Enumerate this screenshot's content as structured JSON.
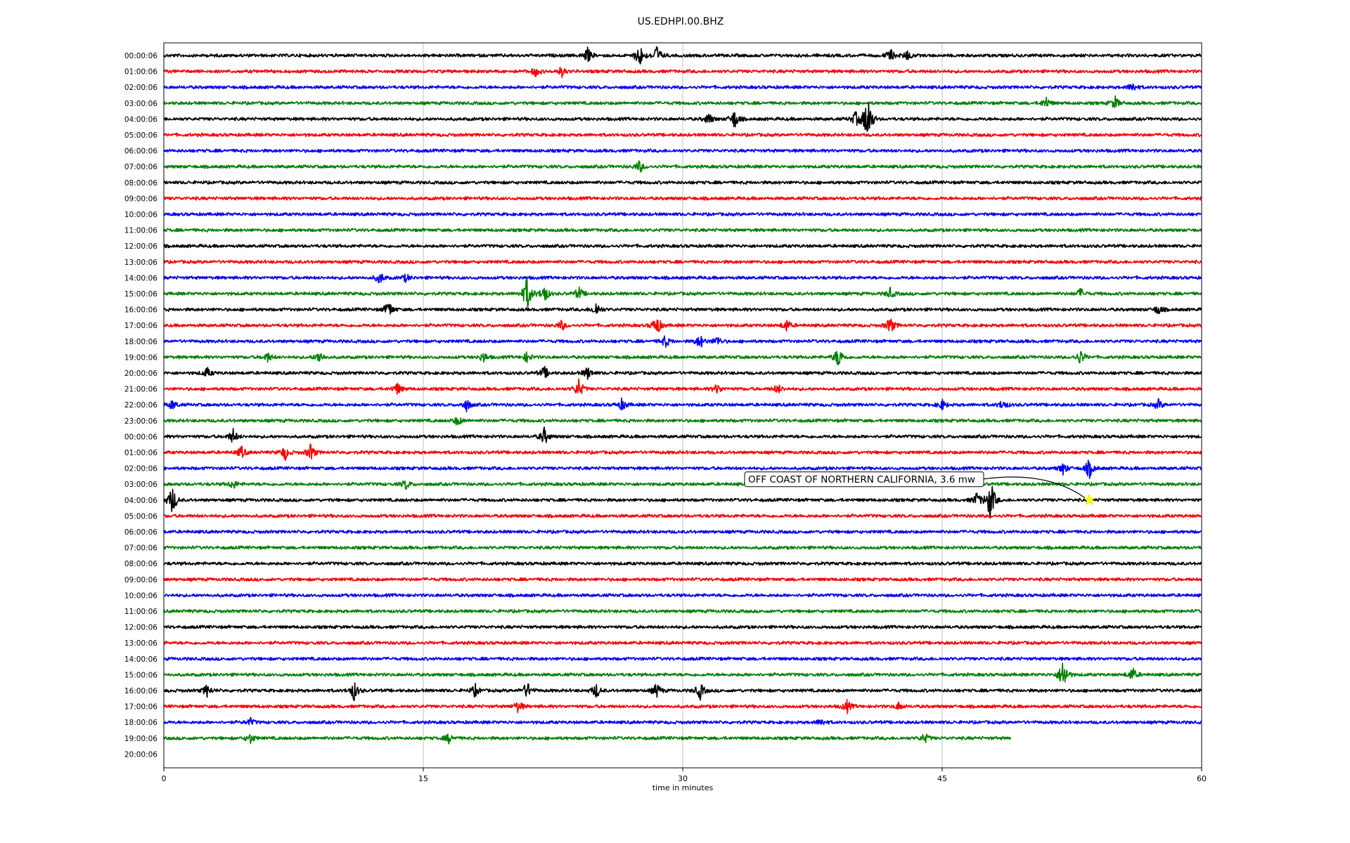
{
  "chart_data": {
    "type": "line",
    "title": "US.EDHPI.00.BHZ",
    "xlabel": "time in minutes",
    "ylabel": "",
    "xlim": [
      0,
      60
    ],
    "x_ticks": [
      "0",
      "15",
      "30",
      "45",
      "60"
    ],
    "x_tick_values": [
      0,
      15,
      30,
      45,
      60
    ],
    "grid": "vertical",
    "trace_end_minutes": 49,
    "colors": [
      "#000000",
      "#ff0000",
      "#0000ff",
      "#008000"
    ],
    "rows": [
      {
        "label": "00:00:06",
        "events": [
          [
            24.5,
            0.6
          ],
          [
            27.5,
            1.0
          ],
          [
            28.5,
            0.8
          ],
          [
            42.0,
            0.5
          ],
          [
            43.0,
            0.4
          ]
        ]
      },
      {
        "label": "01:00:06",
        "events": [
          [
            21.5,
            0.4
          ],
          [
            23.0,
            0.4
          ]
        ]
      },
      {
        "label": "02:00:06",
        "events": [
          [
            56.0,
            0.4
          ]
        ]
      },
      {
        "label": "03:00:06",
        "events": [
          [
            51.0,
            0.5
          ],
          [
            55.0,
            0.5
          ]
        ]
      },
      {
        "label": "04:00:06",
        "events": [
          [
            31.5,
            0.5
          ],
          [
            33.0,
            0.8
          ],
          [
            40.0,
            0.6
          ],
          [
            40.7,
            2.2
          ]
        ]
      },
      {
        "label": "05:00:06",
        "events": []
      },
      {
        "label": "06:00:06",
        "events": []
      },
      {
        "label": "07:00:06",
        "events": [
          [
            27.5,
            0.5
          ]
        ]
      },
      {
        "label": "08:00:06",
        "events": []
      },
      {
        "label": "09:00:06",
        "events": []
      },
      {
        "label": "10:00:06",
        "events": []
      },
      {
        "label": "11:00:06",
        "events": []
      },
      {
        "label": "12:00:06",
        "events": []
      },
      {
        "label": "13:00:06",
        "events": []
      },
      {
        "label": "14:00:06",
        "events": [
          [
            12.5,
            0.5
          ],
          [
            14.0,
            0.3
          ]
        ]
      },
      {
        "label": "15:00:06",
        "events": [
          [
            21.0,
            1.5
          ],
          [
            22.0,
            0.8
          ],
          [
            24.0,
            0.5
          ],
          [
            42.0,
            0.4
          ],
          [
            53.0,
            0.4
          ]
        ]
      },
      {
        "label": "16:00:06",
        "events": [
          [
            13.0,
            0.7
          ],
          [
            25.0,
            0.6
          ],
          [
            57.5,
            0.4
          ]
        ]
      },
      {
        "label": "17:00:06",
        "events": [
          [
            23.0,
            0.4
          ],
          [
            28.5,
            0.9
          ],
          [
            36.0,
            0.5
          ],
          [
            42.0,
            0.7
          ]
        ]
      },
      {
        "label": "18:00:06",
        "events": [
          [
            29.0,
            0.5
          ],
          [
            31.0,
            0.6
          ],
          [
            32.0,
            0.4
          ]
        ]
      },
      {
        "label": "19:00:06",
        "events": [
          [
            6.0,
            0.4
          ],
          [
            9.0,
            0.5
          ],
          [
            18.5,
            0.4
          ],
          [
            21.0,
            0.4
          ],
          [
            39.0,
            0.9
          ],
          [
            53.0,
            0.6
          ]
        ]
      },
      {
        "label": "20:00:06",
        "events": [
          [
            2.5,
            0.4
          ],
          [
            22.0,
            0.5
          ],
          [
            24.5,
            0.5
          ]
        ]
      },
      {
        "label": "21:00:06",
        "events": [
          [
            13.5,
            0.5
          ],
          [
            24.0,
            0.8
          ],
          [
            32.0,
            0.4
          ],
          [
            35.5,
            0.4
          ]
        ]
      },
      {
        "label": "22:00:06",
        "events": [
          [
            0.5,
            0.4
          ],
          [
            17.5,
            0.5
          ],
          [
            26.5,
            0.5
          ],
          [
            45.0,
            0.4
          ],
          [
            48.5,
            0.4
          ],
          [
            57.5,
            0.4
          ]
        ]
      },
      {
        "label": "23:00:06",
        "events": [
          [
            17.0,
            0.4
          ]
        ]
      },
      {
        "label": "00:00:06",
        "events": [
          [
            4.0,
            0.6
          ],
          [
            22.0,
            0.7
          ]
        ]
      },
      {
        "label": "01:00:06",
        "events": [
          [
            4.5,
            0.5
          ],
          [
            7.0,
            0.6
          ],
          [
            8.5,
            0.7
          ]
        ]
      },
      {
        "label": "02:00:06",
        "events": [
          [
            52.0,
            0.5
          ],
          [
            53.5,
            0.8
          ]
        ]
      },
      {
        "label": "03:00:06",
        "events": [
          [
            4.0,
            0.4
          ],
          [
            14.0,
            0.4
          ]
        ]
      },
      {
        "label": "04:00:06",
        "events": [
          [
            0.5,
            1.2
          ],
          [
            47.0,
            0.6
          ],
          [
            47.8,
            1.8
          ]
        ]
      },
      {
        "label": "05:00:06",
        "events": []
      },
      {
        "label": "06:00:06",
        "events": []
      },
      {
        "label": "07:00:06",
        "events": []
      },
      {
        "label": "08:00:06",
        "events": []
      },
      {
        "label": "09:00:06",
        "events": []
      },
      {
        "label": "10:00:06",
        "events": []
      },
      {
        "label": "11:00:06",
        "events": []
      },
      {
        "label": "12:00:06",
        "events": []
      },
      {
        "label": "13:00:06",
        "events": []
      },
      {
        "label": "14:00:06",
        "events": []
      },
      {
        "label": "15:00:06",
        "events": [
          [
            52.0,
            1.4
          ],
          [
            56.0,
            0.6
          ]
        ]
      },
      {
        "label": "16:00:06",
        "events": [
          [
            2.5,
            0.5
          ],
          [
            11.0,
            0.8
          ],
          [
            18.0,
            0.5
          ],
          [
            21.0,
            0.7
          ],
          [
            25.0,
            0.6
          ],
          [
            28.5,
            0.6
          ],
          [
            31.0,
            0.7
          ]
        ]
      },
      {
        "label": "17:00:06",
        "events": [
          [
            20.5,
            0.5
          ],
          [
            39.5,
            0.5
          ],
          [
            42.5,
            0.3
          ]
        ]
      },
      {
        "label": "18:00:06",
        "events": [
          [
            5.0,
            0.3
          ],
          [
            38.0,
            0.3
          ]
        ]
      },
      {
        "label": "19:00:06",
        "events": [
          [
            5.0,
            0.4
          ],
          [
            16.5,
            0.4
          ],
          [
            44.0,
            0.4
          ]
        ]
      },
      {
        "label": "20:00:06",
        "events": []
      }
    ],
    "annotation": {
      "text": "OFF COAST OF NORTHERN CALIFORNIA, 3.6 mw",
      "row_index": 28,
      "marker_x": 53.5,
      "marker_color": "#ffff00"
    }
  }
}
